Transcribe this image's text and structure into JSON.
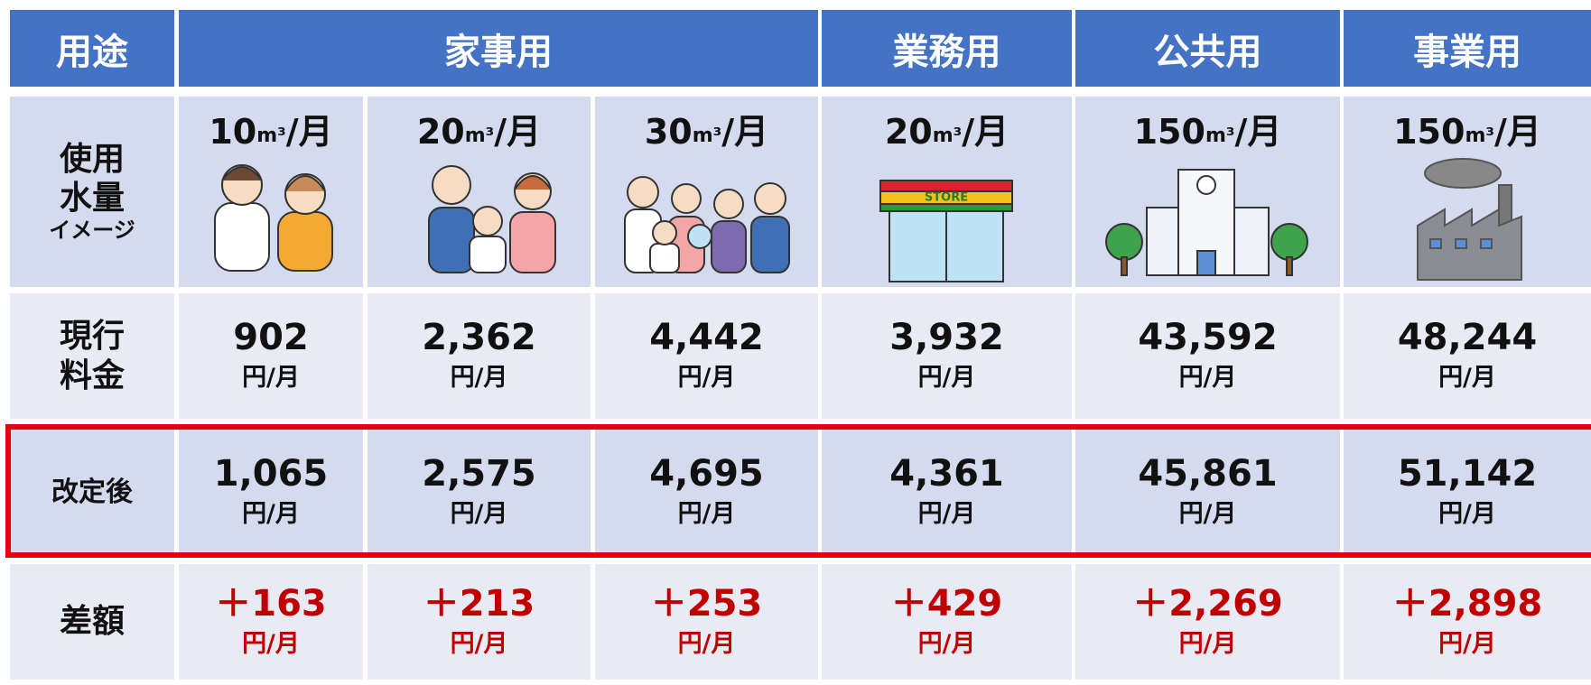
{
  "header": {
    "label": "用途",
    "groups": [
      "家事用",
      "業務用",
      "公共用",
      "事業用"
    ]
  },
  "usage": {
    "label": [
      "使用",
      "水量",
      "イメージ"
    ],
    "cells": [
      {
        "amount": "10",
        "unit": "m³",
        "per": "/月"
      },
      {
        "amount": "20",
        "unit": "m³",
        "per": "/月"
      },
      {
        "amount": "30",
        "unit": "m³",
        "per": "/月"
      },
      {
        "amount": "20",
        "unit": "m³",
        "per": "/月"
      },
      {
        "amount": "150",
        "unit": "m³",
        "per": "/月"
      },
      {
        "amount": "150",
        "unit": "m³",
        "per": "/月"
      }
    ],
    "store_sign": "STORE"
  },
  "fee_rows": [
    {
      "label": [
        "現行",
        "料金"
      ],
      "cells": [
        {
          "value": "902",
          "unit": "円/月"
        },
        {
          "value": "2,362",
          "unit": "円/月"
        },
        {
          "value": "4,442",
          "unit": "円/月"
        },
        {
          "value": "3,932",
          "unit": "円/月"
        },
        {
          "value": "43,592",
          "unit": "円/月"
        },
        {
          "value": "48,244",
          "unit": "円/月"
        }
      ]
    },
    {
      "label": [
        "改定後"
      ],
      "cells": [
        {
          "value": "1,065",
          "unit": "円/月"
        },
        {
          "value": "2,575",
          "unit": "円/月"
        },
        {
          "value": "4,695",
          "unit": "円/月"
        },
        {
          "value": "4,361",
          "unit": "円/月"
        },
        {
          "value": "45,861",
          "unit": "円/月"
        },
        {
          "value": "51,142",
          "unit": "円/月"
        }
      ]
    },
    {
      "label": [
        "差額"
      ],
      "cells": [
        {
          "value": "＋163",
          "unit": "円/月"
        },
        {
          "value": "＋213",
          "unit": "円/月"
        },
        {
          "value": "＋253",
          "unit": "円/月"
        },
        {
          "value": "＋429",
          "unit": "円/月"
        },
        {
          "value": "＋2,269",
          "unit": "円/月"
        },
        {
          "value": "＋2,898",
          "unit": "円/月"
        }
      ]
    }
  ]
}
